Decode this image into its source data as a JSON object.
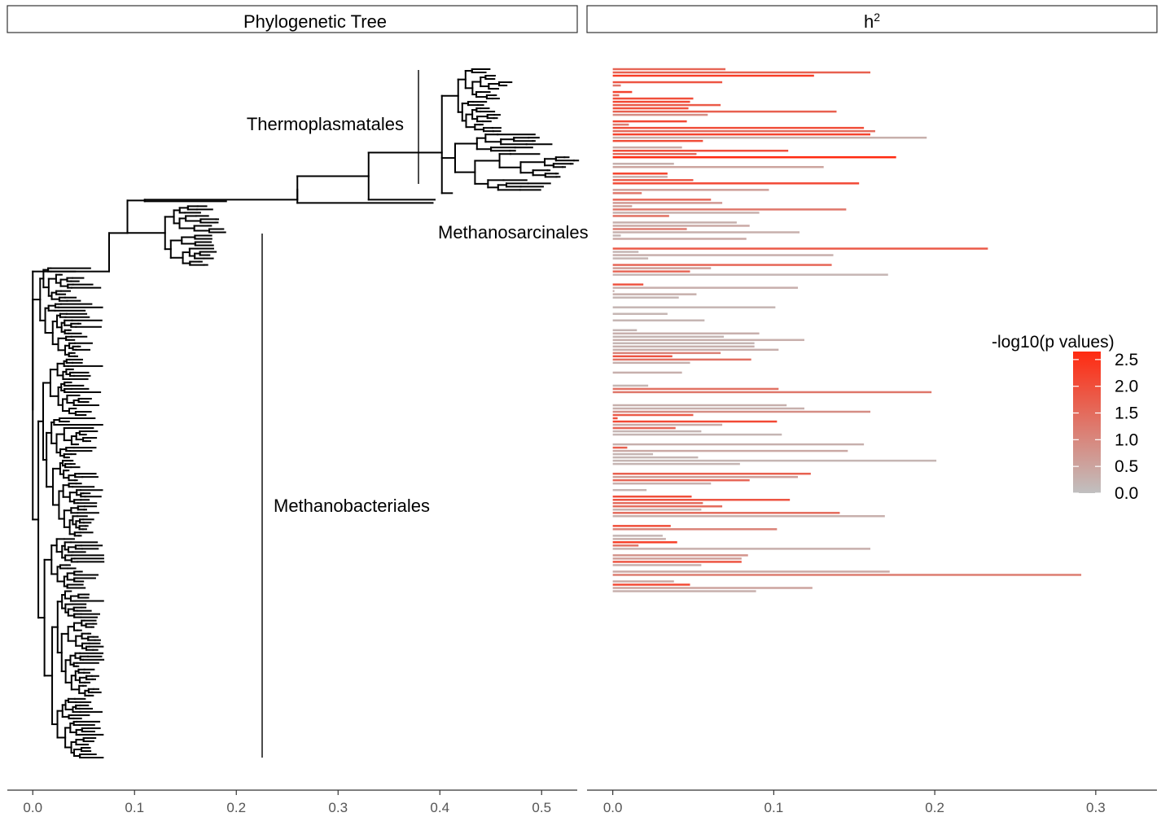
{
  "chart_data": [
    {
      "type": "tree",
      "title": "Phylogenetic Tree",
      "xlim": [
        -0.025,
        0.535
      ],
      "x_ticks": [
        0.0,
        0.1,
        0.2,
        0.3,
        0.4,
        0.5
      ],
      "x_tick_labels": [
        "0.0",
        "0.1",
        "0.2",
        "0.3",
        "0.4",
        "0.5"
      ],
      "n_tips": 212,
      "clade_labels": [
        "Thermoplasmatales",
        "Methanosarcinales",
        "Methanobacteriales"
      ],
      "backbone_nodes": [
        {
          "id": "root",
          "x": 0.0
        },
        {
          "id": "n1",
          "x": 0.093
        },
        {
          "id": "n2",
          "x": 0.11
        },
        {
          "id": "n3",
          "x": 0.26
        },
        {
          "id": "n4",
          "x": 0.33
        },
        {
          "id": "n5",
          "x": 0.402
        }
      ]
    },
    {
      "type": "bar",
      "orientation": "horizontal",
      "title": "h",
      "title_superscript": "2",
      "xlim": [
        -0.016,
        0.338
      ],
      "x_ticks": [
        0.0,
        0.1,
        0.2,
        0.3
      ],
      "x_tick_labels": [
        "0.0",
        "0.1",
        "0.2",
        "0.3"
      ],
      "legend": {
        "title": "-log10(p values)",
        "position": "right",
        "range": [
          0,
          2.65
        ],
        "ticks": [
          0.0,
          0.5,
          1.0,
          1.5,
          2.0,
          2.5
        ],
        "tick_labels": [
          "0.0",
          "0.5",
          "1.0",
          "1.5",
          "2.0",
          "2.5"
        ],
        "low_color": "#c0c0c0",
        "high_color": "#ff2a10"
      },
      "bars_h2": [
        0.07,
        0.16,
        0.125,
        0,
        0.068,
        0.005,
        0,
        0.012,
        0.004,
        0.05,
        0.048,
        0.067,
        0.047,
        0.139,
        0.059,
        0,
        0.046,
        0.01,
        0.156,
        0.163,
        0.16,
        0.195,
        0.056,
        0,
        0.043,
        0.109,
        0.052,
        0.176,
        0,
        0.038,
        0.131,
        0,
        0.034,
        0.034,
        0.05,
        0.153,
        0,
        0.097,
        0.018,
        0,
        0.061,
        0.068,
        0.012,
        0.145,
        0.091,
        0.035,
        0,
        0.077,
        0.085,
        0.046,
        0.116,
        0.005,
        0.083,
        0,
        0,
        0.233,
        0.016,
        0.137,
        0.022,
        0,
        0.136,
        0.061,
        0.048,
        0.171,
        0,
        0,
        0.019,
        0.115,
        0.001,
        0.052,
        0.041,
        0,
        0,
        0.101,
        0,
        0.034,
        0,
        0.057,
        0,
        0,
        0.015,
        0.091,
        0.069,
        0.119,
        0.088,
        0.088,
        0.103,
        0.067,
        0.037,
        0.086,
        0.048,
        0,
        0,
        0.043,
        0,
        0,
        0,
        0.022,
        0.103,
        0.198,
        0,
        0,
        0,
        0.108,
        0.119,
        0.16,
        0.05,
        0.003,
        0.102,
        0.068,
        0.039,
        0.055,
        0.105,
        0,
        0,
        0.156,
        0.009,
        0.146,
        0.025,
        0.053,
        0.201,
        0.079,
        0,
        0,
        0.123,
        0.115,
        0.085,
        0.061,
        0,
        0.021,
        0,
        0.049,
        0.11,
        0.056,
        0.068,
        0.055,
        0.141,
        0.169,
        0,
        0,
        0.036,
        0.102,
        0,
        0.031,
        0.033,
        0.04,
        0.016,
        0.16,
        0,
        0.084,
        0.08,
        0.08,
        0.055,
        0,
        0.172,
        0.291,
        0,
        0.038,
        0.048,
        0.124,
        0.089,
        0,
        0,
        0,
        0,
        0,
        0,
        0,
        0,
        0,
        0,
        0,
        0,
        0,
        0,
        0,
        0,
        0,
        0,
        0,
        0,
        0,
        0,
        0,
        0,
        0,
        0,
        0,
        0,
        0,
        0,
        0,
        0,
        0,
        0,
        0,
        0,
        0,
        0,
        0,
        0,
        0,
        0,
        0,
        0,
        0,
        0,
        0,
        0,
        0,
        0,
        0,
        0,
        0,
        0,
        0
      ],
      "bars_neglog10p": [
        1.6,
        1.7,
        2.3,
        0,
        1.9,
        1.3,
        0,
        2.2,
        1.5,
        2.0,
        2.1,
        1.8,
        2.0,
        1.7,
        0.9,
        0,
        2.1,
        1.2,
        2.0,
        1.5,
        2.2,
        0.3,
        2.0,
        0,
        0.4,
        2.0,
        1.5,
        2.65,
        0,
        0.3,
        0.5,
        0,
        2.2,
        0.3,
        1.8,
        2.1,
        0,
        0.6,
        1.3,
        0,
        1.6,
        0.7,
        0.6,
        1.3,
        0.3,
        1.4,
        0,
        0.3,
        0.4,
        1.2,
        0.3,
        0.2,
        0.4,
        0,
        0,
        1.8,
        0.2,
        0.3,
        0.2,
        0,
        1.6,
        0.6,
        1.6,
        0.2,
        0,
        0,
        1.9,
        0.3,
        0.3,
        0.3,
        0.2,
        0,
        0,
        0.2,
        0,
        0.2,
        0,
        0.2,
        0,
        0,
        0.2,
        0.3,
        0.2,
        0.3,
        0.2,
        0.3,
        0.3,
        1.1,
        1.9,
        1.4,
        0.3,
        0,
        0,
        0.3,
        0,
        0,
        0,
        0.2,
        1.4,
        1.3,
        0,
        0,
        0,
        0.3,
        0.3,
        0.9,
        1.8,
        2.0,
        2.1,
        0.4,
        1.6,
        0.2,
        0.2,
        0,
        0,
        0.3,
        1.7,
        0.4,
        0.2,
        0.2,
        0.2,
        0.2,
        0,
        0,
        1.7,
        0.6,
        1.6,
        0.3,
        0,
        0.2,
        0,
        2.0,
        1.9,
        1.5,
        1.5,
        0.3,
        1.5,
        0.3,
        0,
        0,
        2.0,
        1.1,
        0,
        0.2,
        0.3,
        2.3,
        1.4,
        0.3,
        0,
        0.8,
        0.6,
        1.9,
        0.3,
        0,
        0.4,
        1.2,
        0,
        0.4,
        2.1,
        0.5,
        0.3,
        0,
        0,
        0,
        0,
        0,
        0,
        0,
        0,
        0,
        0,
        0,
        0,
        0,
        0,
        0,
        0,
        0,
        0,
        0,
        0,
        0,
        0,
        0,
        0,
        0,
        0,
        0,
        0,
        0,
        0,
        0,
        0,
        0,
        0,
        0,
        0,
        0,
        0,
        0,
        0,
        0,
        0,
        0,
        0,
        0,
        0,
        0,
        0,
        0,
        0,
        0,
        0,
        0,
        0,
        0
      ]
    }
  ]
}
